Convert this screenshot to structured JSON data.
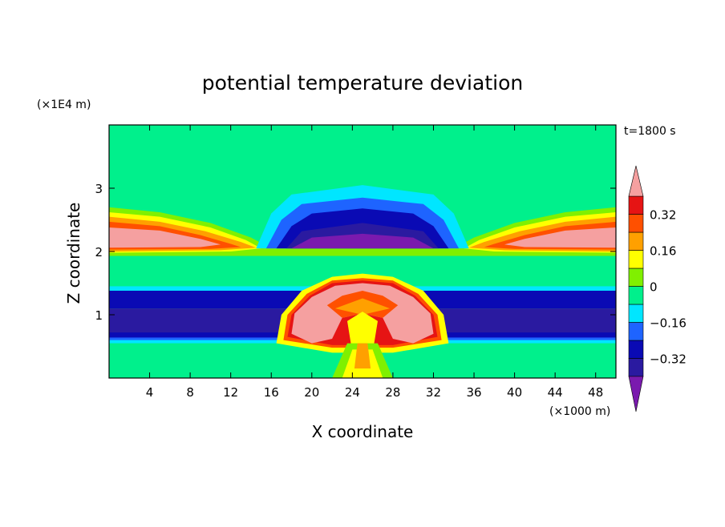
{
  "chart_data": {
    "type": "heatmap",
    "title": "potential temperature deviation",
    "xlabel": "X coordinate",
    "ylabel": "Z coordinate",
    "x_unit": "(×1000 m)",
    "y_unit": "(×1E4 m)",
    "time_label": "t=1800 s",
    "xlim": [
      0,
      50
    ],
    "ylim": [
      0,
      4
    ],
    "x_ticks": [
      4,
      8,
      12,
      16,
      20,
      24,
      28,
      32,
      36,
      40,
      44,
      48
    ],
    "y_ticks": [
      1,
      2,
      3
    ],
    "colorbar": {
      "levels": [
        -0.4,
        -0.32,
        -0.24,
        -0.16,
        -0.08,
        0,
        0.08,
        0.16,
        0.24,
        0.32,
        0.4
      ],
      "tick_labels": [
        "0.32",
        "0.16",
        "0",
        "−0.16",
        "−0.32"
      ],
      "tick_values": [
        0.32,
        0.16,
        0,
        -0.16,
        -0.32
      ],
      "colors": [
        "#7a1aae",
        "#2a1aa0",
        "#0a0ab4",
        "#1e64ff",
        "#00e6ff",
        "#00f08c",
        "#80f000",
        "#ffff00",
        "#ffa000",
        "#ff5000",
        "#e61414",
        "#f5a0a0"
      ],
      "extend": "both"
    }
  }
}
